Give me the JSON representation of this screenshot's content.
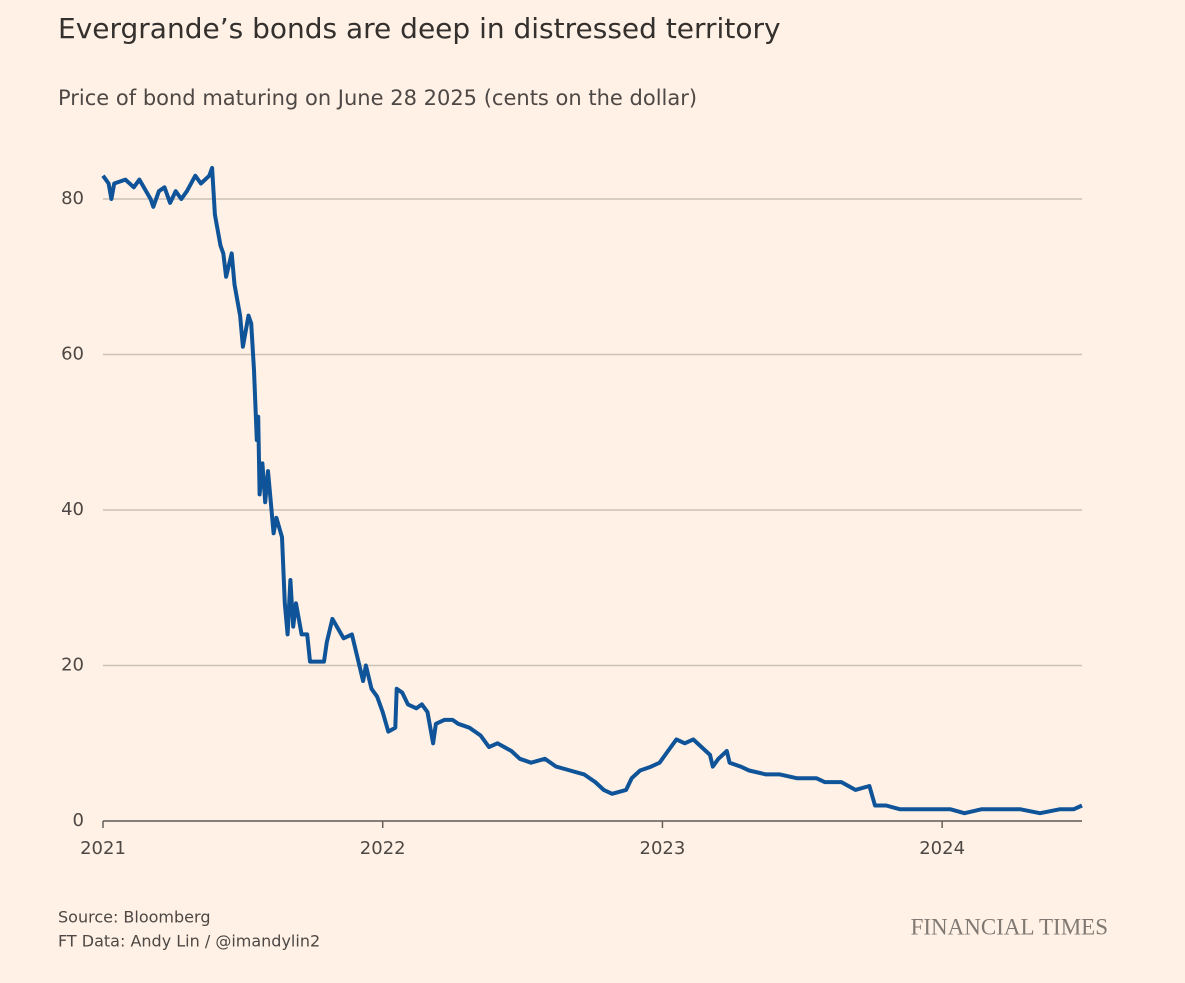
{
  "chart_data": {
    "type": "line",
    "title": "Evergrande’s bonds are deep in distressed territory",
    "subtitle": "Price of bond maturing on June 28 2025 (cents on the dollar)",
    "source": "Source: Bloomberg",
    "credit": "FT Data: Andy Lin / @imandylin2",
    "brand": "FINANCIAL TIMES",
    "xlim": [
      2021,
      2024.5
    ],
    "xticks": [
      2021,
      2022,
      2023,
      2024
    ],
    "ylim": [
      0,
      85
    ],
    "yticks": [
      0,
      20,
      40,
      60,
      80
    ],
    "grid": true,
    "x": [
      2021.0,
      2021.02,
      2021.03,
      2021.04,
      2021.08,
      2021.11,
      2021.13,
      2021.17,
      2021.18,
      2021.2,
      2021.22,
      2021.24,
      2021.26,
      2021.28,
      2021.3,
      2021.33,
      2021.35,
      2021.38,
      2021.39,
      2021.4,
      2021.42,
      2021.43,
      2021.44,
      2021.46,
      2021.47,
      2021.48,
      2021.49,
      2021.5,
      2021.52,
      2021.53,
      2021.54,
      2021.55,
      2021.555,
      2021.56,
      2021.57,
      2021.58,
      2021.59,
      2021.6,
      2021.61,
      2021.62,
      2021.64,
      2021.65,
      2021.66,
      2021.67,
      2021.68,
      2021.69,
      2021.71,
      2021.73,
      2021.74,
      2021.79,
      2021.8,
      2021.82,
      2021.86,
      2021.89,
      2021.91,
      2021.93,
      2021.94,
      2021.96,
      2021.98,
      2022.0,
      2022.02,
      2022.045,
      2022.05,
      2022.07,
      2022.09,
      2022.12,
      2022.14,
      2022.16,
      2022.18,
      2022.19,
      2022.22,
      2022.25,
      2022.27,
      2022.31,
      2022.35,
      2022.38,
      2022.41,
      2022.46,
      2022.49,
      2022.53,
      2022.58,
      2022.62,
      2022.67,
      2022.72,
      2022.76,
      2022.79,
      2022.82,
      2022.87,
      2022.89,
      2022.92,
      2022.96,
      2022.99,
      2023.02,
      2023.05,
      2023.08,
      2023.11,
      2023.14,
      2023.17,
      2023.18,
      2023.2,
      2023.23,
      2023.24,
      2023.28,
      2023.31,
      2023.37,
      2023.42,
      2023.48,
      2023.55,
      2023.58,
      2023.64,
      2023.69,
      2023.74,
      2023.76,
      2023.8,
      2023.85,
      2023.92,
      2023.98,
      2024.03,
      2024.08,
      2024.14,
      2024.21,
      2024.28,
      2024.35,
      2024.42,
      2024.47,
      2024.5
    ],
    "series": [
      {
        "name": "Bond price",
        "color": "#0f5499",
        "values": [
          83,
          82,
          80,
          82,
          82.5,
          81.5,
          82.5,
          80,
          79,
          81,
          81.5,
          79.5,
          81,
          80,
          81,
          83,
          82,
          83,
          84,
          78,
          74,
          73,
          70,
          73,
          69,
          67,
          65,
          61,
          65,
          64,
          58,
          49,
          52,
          42,
          46,
          41,
          45,
          41,
          37,
          39,
          36.5,
          28,
          24,
          31,
          25,
          28,
          24,
          24,
          20.5,
          20.5,
          23,
          26,
          23.5,
          24,
          21,
          18,
          20,
          17,
          16,
          14,
          11.5,
          12,
          17,
          16.5,
          15,
          14.5,
          15,
          14,
          10,
          12.5,
          13,
          13,
          12.5,
          12,
          11,
          9.5,
          10,
          9,
          8,
          7.5,
          8,
          7,
          6.5,
          6,
          5,
          4,
          3.5,
          4,
          5.5,
          6.5,
          7,
          7.5,
          9,
          10.5,
          10,
          10.5,
          9.5,
          8.5,
          7,
          8,
          9,
          7.5,
          7,
          6.5,
          6,
          6,
          5.5,
          5.5,
          5,
          5,
          4,
          4.5,
          2,
          2,
          1.5,
          1.5,
          1.5,
          1.5,
          1,
          1.5,
          1.5,
          1.5,
          1,
          1.5,
          1.5,
          2
        ]
      }
    ]
  }
}
